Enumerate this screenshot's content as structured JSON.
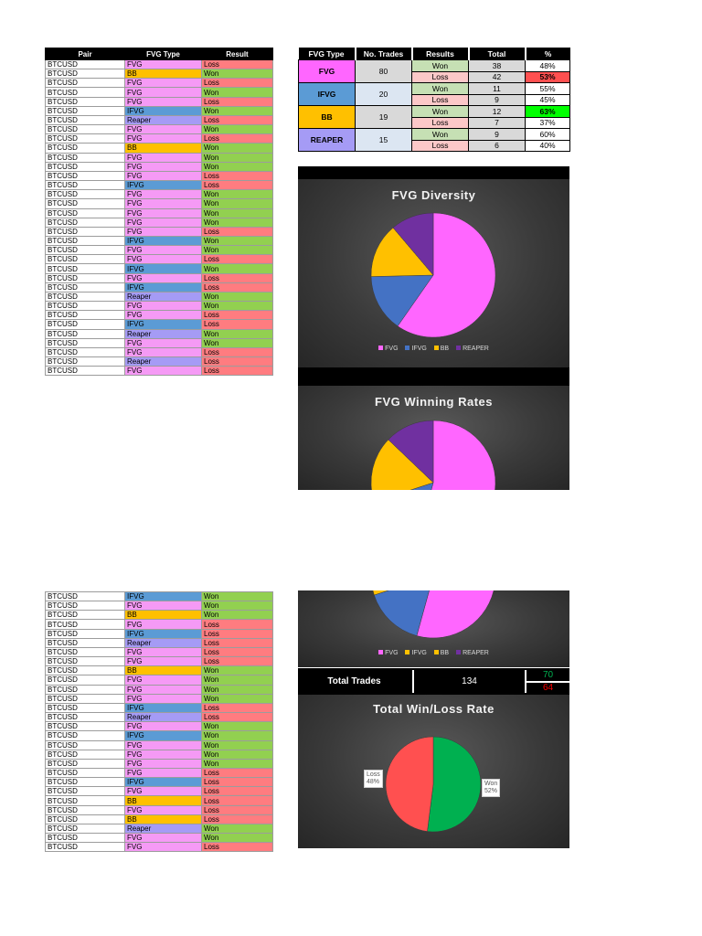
{
  "log": {
    "headers": [
      "Pair",
      "FVG Type",
      "Result"
    ],
    "pair": "BTCUSD",
    "page1": [
      [
        "FVG",
        "Loss"
      ],
      [
        "BB",
        "Won"
      ],
      [
        "FVG",
        "Loss"
      ],
      [
        "FVG",
        "Won"
      ],
      [
        "FVG",
        "Loss"
      ],
      [
        "IFVG",
        "Won"
      ],
      [
        "Reaper",
        "Loss"
      ],
      [
        "FVG",
        "Won"
      ],
      [
        "FVG",
        "Loss"
      ],
      [
        "BB",
        "Won"
      ],
      [
        "FVG",
        "Won"
      ],
      [
        "FVG",
        "Won"
      ],
      [
        "FVG",
        "Loss"
      ],
      [
        "IFVG",
        "Loss"
      ],
      [
        "FVG",
        "Won"
      ],
      [
        "FVG",
        "Won"
      ],
      [
        "FVG",
        "Won"
      ],
      [
        "FVG",
        "Won"
      ],
      [
        "FVG",
        "Loss"
      ],
      [
        "IFVG",
        "Won"
      ],
      [
        "FVG",
        "Won"
      ],
      [
        "FVG",
        "Loss"
      ],
      [
        "IFVG",
        "Won"
      ],
      [
        "FVG",
        "Loss"
      ],
      [
        "IFVG",
        "Loss"
      ],
      [
        "Reaper",
        "Won"
      ],
      [
        "FVG",
        "Won"
      ],
      [
        "FVG",
        "Loss"
      ],
      [
        "IFVG",
        "Loss"
      ],
      [
        "Reaper",
        "Won"
      ],
      [
        "FVG",
        "Won"
      ],
      [
        "FVG",
        "Loss"
      ],
      [
        "Reaper",
        "Loss"
      ],
      [
        "FVG",
        "Loss"
      ]
    ],
    "page2": [
      [
        "IFVG",
        "Won"
      ],
      [
        "FVG",
        "Won"
      ],
      [
        "BB",
        "Won"
      ],
      [
        "FVG",
        "Loss"
      ],
      [
        "IFVG",
        "Loss"
      ],
      [
        "Reaper",
        "Loss"
      ],
      [
        "FVG",
        "Loss"
      ],
      [
        "FVG",
        "Loss"
      ],
      [
        "BB",
        "Won"
      ],
      [
        "FVG",
        "Won"
      ],
      [
        "FVG",
        "Won"
      ],
      [
        "FVG",
        "Won"
      ],
      [
        "IFVG",
        "Loss"
      ],
      [
        "Reaper",
        "Loss"
      ],
      [
        "FVG",
        "Won"
      ],
      [
        "IFVG",
        "Won"
      ],
      [
        "FVG",
        "Won"
      ],
      [
        "FVG",
        "Won"
      ],
      [
        "FVG",
        "Won"
      ],
      [
        "FVG",
        "Loss"
      ],
      [
        "IFVG",
        "Loss"
      ],
      [
        "FVG",
        "Loss"
      ],
      [
        "BB",
        "Loss"
      ],
      [
        "FVG",
        "Loss"
      ],
      [
        "BB",
        "Loss"
      ],
      [
        "Reaper",
        "Won"
      ],
      [
        "FVG",
        "Won"
      ],
      [
        "FVG",
        "Loss"
      ]
    ]
  },
  "summary": {
    "headers": [
      "FVG Type",
      "No. Trades",
      "Results",
      "Total",
      "%"
    ],
    "rows": [
      {
        "type": "FVG",
        "trades": "80",
        "color": "#ff66ff",
        "tradesBg": "#d9d9d9",
        "won": "38",
        "wonPct": "48%",
        "loss": "42",
        "lossPct": "53%",
        "lossPctBg": "#ff5050",
        "wonPctBg": "#ffffff"
      },
      {
        "type": "IFVG",
        "trades": "20",
        "color": "#5b9bd5",
        "tradesBg": "#dce6f2",
        "won": "11",
        "wonPct": "55%",
        "loss": "9",
        "lossPct": "45%",
        "lossPctBg": "#ffffff",
        "wonPctBg": "#ffffff"
      },
      {
        "type": "BB",
        "trades": "19",
        "color": "#ffc000",
        "tradesBg": "#d9d9d9",
        "won": "12",
        "wonPct": "63%",
        "loss": "7",
        "lossPct": "37%",
        "lossPctBg": "#ffffff",
        "wonPctBg": "#00ff00"
      },
      {
        "type": "REAPER",
        "trades": "15",
        "color": "#a59bf5",
        "tradesBg": "#dce6f2",
        "won": "9",
        "wonPct": "60%",
        "loss": "6",
        "lossPct": "40%",
        "lossPctBg": "#ffffff",
        "wonPctBg": "#ffffff"
      }
    ],
    "won_label": "Won",
    "loss_label": "Loss"
  },
  "charts": {
    "diversity_title": "FVG Diversity",
    "winning_title": "FVG Winning Rates",
    "winloss_title": "Total Win/Loss Rate",
    "legend_a": [
      "FVG",
      "IFVG",
      "BB",
      "REAPER"
    ],
    "legend_b": [
      "FVG",
      "IFVG",
      "BB",
      "REAPER"
    ]
  },
  "chart_data": [
    {
      "type": "pie",
      "title": "FVG Diversity",
      "categories": [
        "FVG",
        "IFVG",
        "BB",
        "REAPER"
      ],
      "values": [
        80,
        20,
        19,
        15
      ],
      "colors": [
        "#ff66ff",
        "#4472c4",
        "#ffc000",
        "#7030a0"
      ],
      "legend": "bottom"
    },
    {
      "type": "pie",
      "title": "FVG Winning Rates",
      "categories": [
        "FVG",
        "IFVG",
        "BB",
        "REAPER"
      ],
      "values": [
        38,
        11,
        12,
        9
      ],
      "colors": [
        "#ff66ff",
        "#4472c4",
        "#ffc000",
        "#7030a0"
      ],
      "legend": "bottom"
    },
    {
      "type": "pie",
      "title": "Total Win/Loss Rate",
      "categories": [
        "Won",
        "Loss"
      ],
      "values": [
        52,
        48
      ],
      "data_labels": [
        "Won\n52%",
        "Loss\n48%"
      ],
      "colors": [
        "#00b050",
        "#ff5050"
      ]
    }
  ],
  "totals": {
    "label": "Total Trades",
    "value": "134",
    "won": "70",
    "loss": "64",
    "won_color": "#00b050",
    "loss_color": "#ff0000"
  }
}
